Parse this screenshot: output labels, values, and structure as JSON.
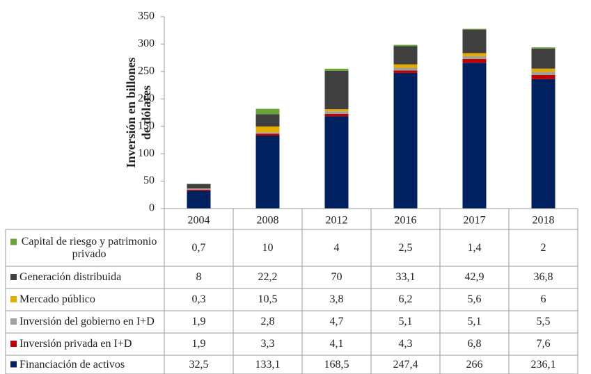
{
  "chart_data": {
    "type": "stacked_bar",
    "ylabel": [
      "Inversión en billones",
      "de dólares"
    ],
    "categories": [
      "2004",
      "2008",
      "2012",
      "2016",
      "2017",
      "2018"
    ],
    "ylim": [
      0,
      350
    ],
    "yticks": [
      0,
      50,
      100,
      150,
      200,
      250,
      300,
      350
    ],
    "series": [
      {
        "name": "Capital de riesgo y patrimonio privado",
        "color": "#6aa339",
        "values": [
          0.7,
          10,
          4,
          2.5,
          1.4,
          2
        ],
        "value_labels": [
          "0,7",
          "10",
          "4",
          "2,5",
          "1,4",
          "2"
        ]
      },
      {
        "name": "Generación distribuida",
        "color": "#404040",
        "values": [
          8,
          22.2,
          70,
          33.1,
          42.9,
          36.8
        ],
        "value_labels": [
          "8",
          "22,2",
          "70",
          "33,1",
          "42,9",
          "36,8"
        ]
      },
      {
        "name": "Mercado público",
        "color": "#e5ac00",
        "values": [
          0.3,
          10.5,
          3.8,
          6.2,
          5.6,
          6
        ],
        "value_labels": [
          "0,3",
          "10,5",
          "3,8",
          "6,2",
          "5,6",
          "6"
        ]
      },
      {
        "name": "Inversión del gobierno en I+D",
        "color": "#a0a0a0",
        "values": [
          1.9,
          2.8,
          4.7,
          5.1,
          5.1,
          5.5
        ],
        "value_labels": [
          "1,9",
          "2,8",
          "4,7",
          "5,1",
          "5,1",
          "5,5"
        ]
      },
      {
        "name": "Inversión privada en I+D",
        "color": "#c00000",
        "values": [
          1.9,
          3.3,
          4.1,
          4.3,
          6.8,
          7.6
        ],
        "value_labels": [
          "1,9",
          "3,3",
          "4,1",
          "4,3",
          "6,8",
          "7,6"
        ]
      },
      {
        "name": "Financiación de activos",
        "color": "#002060",
        "values": [
          32.5,
          133.1,
          168.5,
          247.4,
          266,
          236.1
        ],
        "value_labels": [
          "32,5",
          "133,1",
          "168,5",
          "247,4",
          "266",
          "236,1"
        ]
      }
    ]
  }
}
